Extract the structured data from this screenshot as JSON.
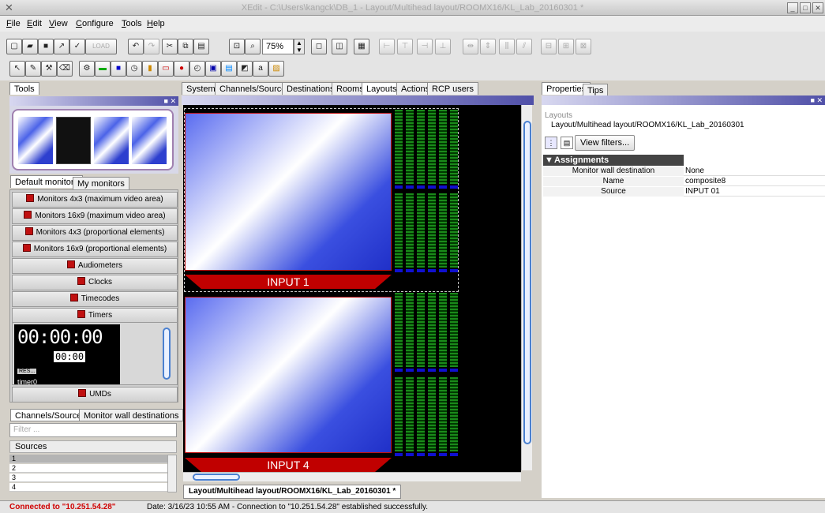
{
  "window": {
    "title": "XEdit - C:\\Users\\kangck\\DB_1 - Layout/Multihead layout/ROOMX16/KL_Lab_20160301 *"
  },
  "menu": [
    {
      "label": "File",
      "u": "F",
      "rest": "ile"
    },
    {
      "label": "Edit",
      "u": "E",
      "rest": "dit"
    },
    {
      "label": "View",
      "u": "V",
      "rest": "iew"
    },
    {
      "label": "Configure",
      "u": "C",
      "rest": "onfigure"
    },
    {
      "label": "Tools",
      "u": "T",
      "rest": "ools"
    },
    {
      "label": "Help",
      "u": "H",
      "rest": "elp"
    }
  ],
  "toolbar": {
    "load_label": "LOAD",
    "zoom": "75%"
  },
  "tools_panel": {
    "tab": "Tools"
  },
  "monitor_tabs": [
    "Default monitors",
    "My monitors"
  ],
  "monitor_items": [
    "Monitors 4x3 (maximum video area)",
    "Monitors 16x9 (maximum video area)",
    "Monitors 4x3 (proportional elements)",
    "Monitors 16x9 (proportional elements)",
    "Audiometers",
    "Clocks",
    "Timecodes",
    "Timers"
  ],
  "timer": {
    "digits": "00:00:00",
    "sub": "00:00",
    "reset": "RES...",
    "name": "timer0"
  },
  "umds_label": "UMDs",
  "lower_tabs": [
    "Channels/Sources",
    "Monitor wall destinations"
  ],
  "filter_placeholder": "Filter ...",
  "sources": {
    "header": "Sources",
    "rows": [
      "1",
      "2",
      "3",
      "4"
    ]
  },
  "main_tabs": [
    "System",
    "Channels/Sources",
    "Destinations",
    "Rooms",
    "Layouts",
    "Actions",
    "RCP users"
  ],
  "canvas": {
    "input1": "INPUT 1",
    "input4": "INPUT 4"
  },
  "doc_tab": "Layout/Multihead layout/ROOMX16/KL_Lab_20160301 *",
  "properties": {
    "tabs": [
      "Properties",
      "Tips"
    ],
    "category": "Layouts",
    "path": "Layout/Multihead layout/ROOMX16/KL_Lab_20160301",
    "view_filters": "View filters...",
    "section": "Assignments",
    "rows": [
      {
        "key": "Monitor wall destination",
        "value": "None"
      },
      {
        "key": "Name",
        "value": "composite8"
      },
      {
        "key": "Source",
        "value": "INPUT 01"
      }
    ]
  },
  "status": {
    "connection": "Connected to \"10.251.54.28\"",
    "message": "Date: 3/16/23 10:55 AM - Connection to \"10.251.54.28\" established successfully."
  }
}
